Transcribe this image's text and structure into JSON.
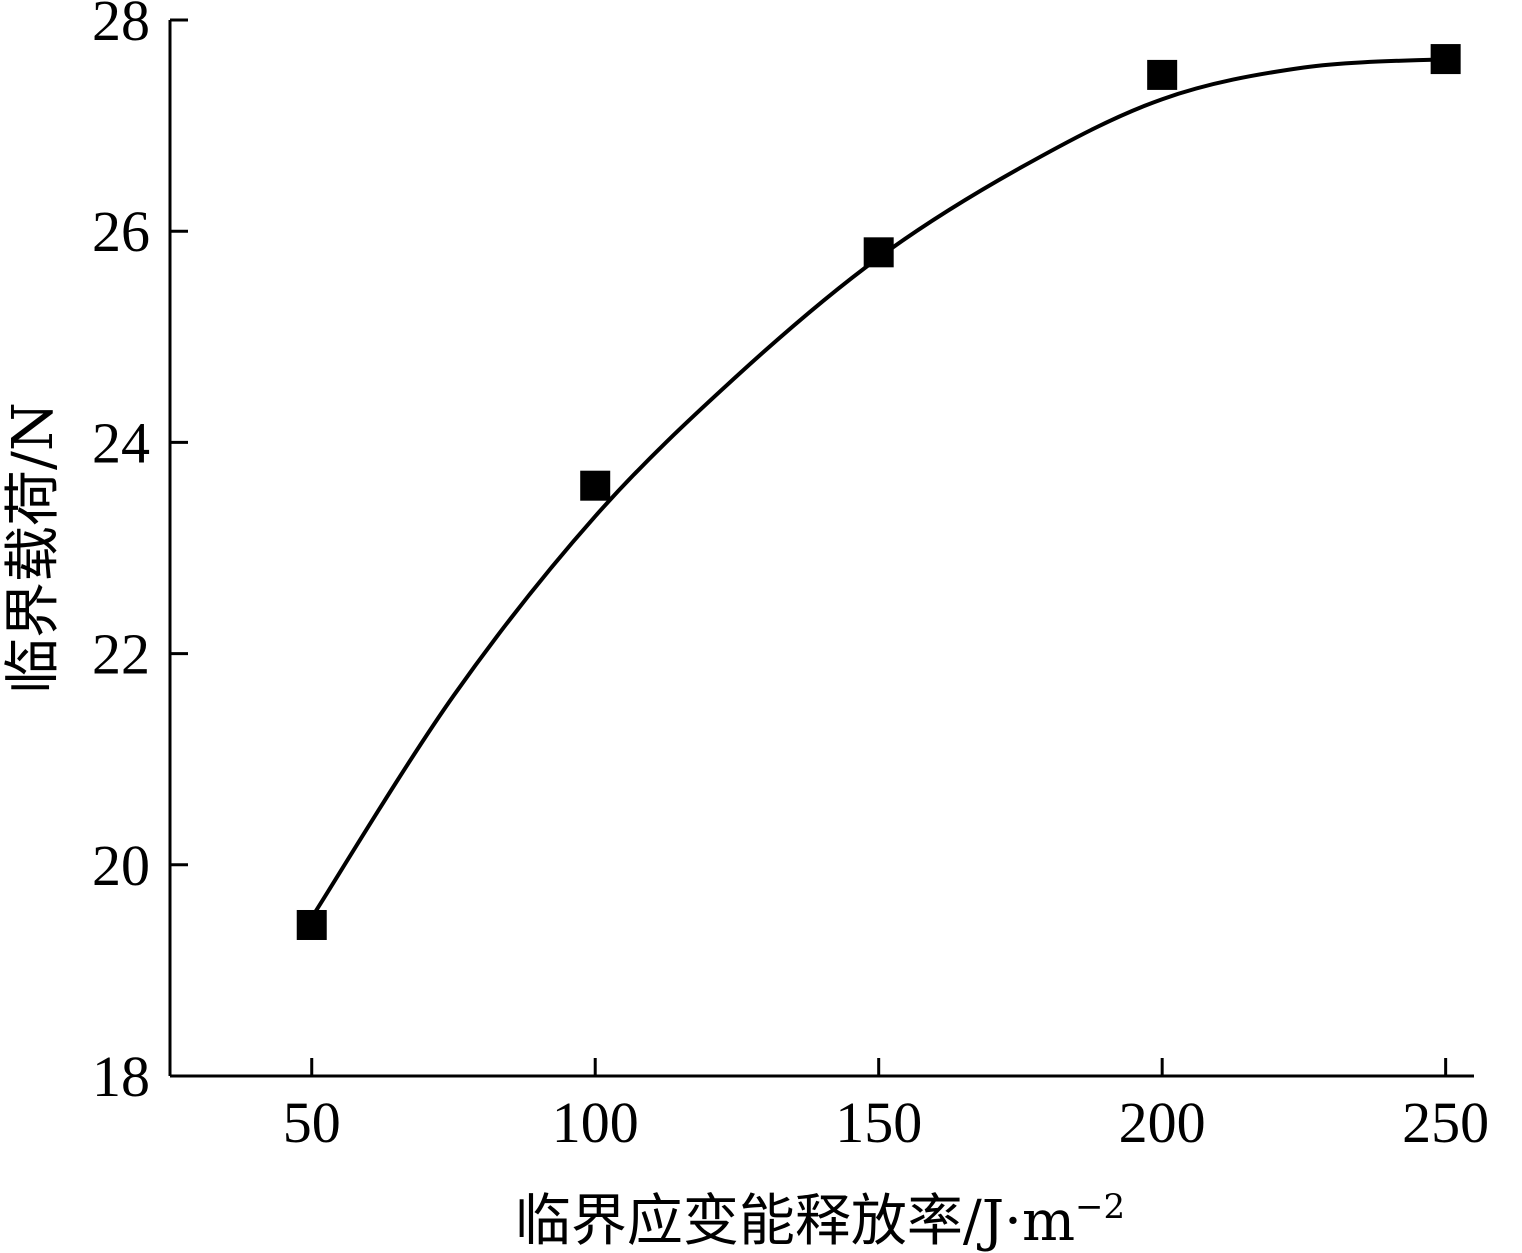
{
  "chart_data": {
    "type": "scatter",
    "title": "",
    "xlabel": "临界应变能释放率/J·m",
    "xlabel_superscript": "−2",
    "ylabel": "临界载荷/N",
    "xlim": [
      25,
      255
    ],
    "ylim": [
      18,
      28
    ],
    "xticks": [
      50,
      100,
      150,
      200,
      250
    ],
    "yticks": [
      18,
      20,
      22,
      24,
      26,
      28
    ],
    "grid": false,
    "legend": "none",
    "series": [
      {
        "marker": "square",
        "color": "#000000",
        "x": [
          50,
          100,
          150,
          200,
          250
        ],
        "y": [
          19.43,
          23.59,
          25.8,
          27.48,
          27.63
        ]
      }
    ],
    "fit_curve": {
      "style": "smooth",
      "color": "#000000",
      "x": [
        50,
        75,
        100,
        125,
        150,
        175,
        200,
        225,
        250
      ],
      "y": [
        19.5,
        21.6,
        23.3,
        24.63,
        25.75,
        26.6,
        27.25,
        27.55,
        27.63
      ]
    }
  }
}
